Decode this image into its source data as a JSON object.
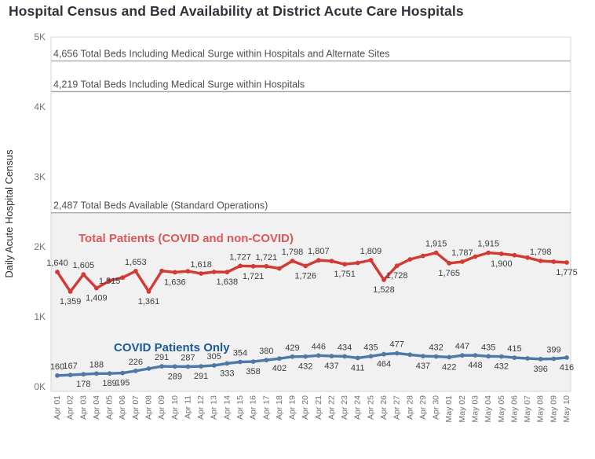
{
  "page": {
    "title": "Hospital Census and Bed Availability at District Acute Care Hospitals"
  },
  "chart_data": {
    "type": "line",
    "title": "Hospital Census and Bed Availability at District Acute Care Hospitals",
    "xlabel": "",
    "ylabel": "Daily Acute Hospital Census",
    "ylim": [
      0,
      5000
    ],
    "yticks": [
      "0K",
      "1K",
      "2K",
      "3K",
      "4K",
      "5K"
    ],
    "grid": "off",
    "legend_position": "inline-labels",
    "colors": {
      "red_line": "#d23a34",
      "red_label": "#e15759",
      "blue_line": "#4e79a7",
      "blue_label": "#1b5a9b",
      "band": "#f1f1f1",
      "ref_line": "#ababab",
      "ref_text": "#4f4f4f",
      "data_label": "#3c3c3c",
      "border": "#d4d4d4"
    },
    "x": [
      "Apr 01",
      "Apr 02",
      "Apr 03",
      "Apr 04",
      "Apr 05",
      "Apr 06",
      "Apr 07",
      "Apr 08",
      "Apr 09",
      "Apr 10",
      "Apr 11",
      "Apr 12",
      "Apr 13",
      "Apr 14",
      "Apr 15",
      "Apr 16",
      "Apr 17",
      "Apr 18",
      "Apr 19",
      "Apr 20",
      "Apr 21",
      "Apr 22",
      "Apr 23",
      "Apr 24",
      "Apr 25",
      "Apr 26",
      "Apr 27",
      "Apr 28",
      "Apr 29",
      "Apr 30",
      "May 01",
      "May 02",
      "May 03",
      "May 04",
      "May 05",
      "May 06",
      "May 07",
      "May 08",
      "May 09",
      "May 10"
    ],
    "reference_lines": [
      {
        "value": 4656,
        "label": "4,656 Total Beds Including Medical Surge within Hospitals and Alternate Sites",
        "shade_below": false
      },
      {
        "value": 4219,
        "label": "4,219 Total Beds Including Medical Surge within Hospitals",
        "shade_below": false
      },
      {
        "value": 2487,
        "label": "2,487 Total Beds Available (Standard Operations)",
        "shade_below": true
      }
    ],
    "series": [
      {
        "id": "total-patients",
        "name": "Total Patients (COVID and non-COVID)",
        "color": "#d23a34",
        "name_color": "#e15759",
        "values": [
          1640,
          1359,
          1605,
          1409,
          1515,
          1560,
          1653,
          1361,
          1655,
          1636,
          1650,
          1618,
          1640,
          1638,
          1727,
          1721,
          1721,
          1690,
          1798,
          1726,
          1807,
          1795,
          1751,
          1770,
          1809,
          1528,
          1728,
          1820,
          1870,
          1915,
          1765,
          1787,
          1860,
          1915,
          1900,
          1880,
          1845,
          1798,
          1786,
          1775
        ],
        "labels": [
          {
            "t": "1,640",
            "p": "a"
          },
          {
            "t": "1,359",
            "p": "b"
          },
          {
            "t": "1,605",
            "p": "a"
          },
          {
            "t": "1,409",
            "p": "b"
          },
          {
            "t": "1,515",
            "p": "m"
          },
          null,
          {
            "t": "1,653",
            "p": "a"
          },
          {
            "t": "1,361",
            "p": "b"
          },
          null,
          {
            "t": "1,636",
            "p": "b"
          },
          null,
          {
            "t": "1,618",
            "p": "a"
          },
          null,
          {
            "t": "1,638",
            "p": "b"
          },
          {
            "t": "1,727",
            "p": "a"
          },
          {
            "t": "1,721",
            "p": "b"
          },
          {
            "t": "1,721",
            "p": "a"
          },
          null,
          {
            "t": "1,798",
            "p": "a"
          },
          {
            "t": "1,726",
            "p": "b"
          },
          {
            "t": "1,807",
            "p": "a"
          },
          null,
          {
            "t": "1,751",
            "p": "b"
          },
          null,
          {
            "t": "1,809",
            "p": "a"
          },
          {
            "t": "1,528",
            "p": "b"
          },
          {
            "t": "1,728",
            "p": "b"
          },
          null,
          null,
          {
            "t": "1,915",
            "p": "a"
          },
          {
            "t": "1,765",
            "p": "b"
          },
          {
            "t": "1,787",
            "p": "a"
          },
          null,
          {
            "t": "1,915",
            "p": "a"
          },
          {
            "t": "1,900",
            "p": "b"
          },
          null,
          null,
          {
            "t": "1,798",
            "p": "a"
          },
          null,
          {
            "t": "1,775",
            "p": "b"
          }
        ]
      },
      {
        "id": "covid-only",
        "name": "COVID Patients Only",
        "color": "#4e79a7",
        "name_color": "#1b5a9b",
        "values": [
          160,
          167,
          178,
          188,
          189,
          195,
          226,
          258,
          291,
          289,
          287,
          291,
          305,
          333,
          354,
          358,
          380,
          402,
          429,
          432,
          446,
          437,
          434,
          411,
          435,
          464,
          477,
          457,
          437,
          432,
          422,
          447,
          448,
          435,
          432,
          415,
          405,
          396,
          399,
          416
        ],
        "labels": [
          {
            "t": "160",
            "p": "a"
          },
          {
            "t": "167",
            "p": "a"
          },
          {
            "t": "178",
            "p": "b"
          },
          {
            "t": "188",
            "p": "a"
          },
          {
            "t": "189",
            "p": "b"
          },
          {
            "t": "195",
            "p": "b"
          },
          {
            "t": "226",
            "p": "a"
          },
          null,
          {
            "t": "291",
            "p": "a"
          },
          {
            "t": "289",
            "p": "b"
          },
          {
            "t": "287",
            "p": "a"
          },
          {
            "t": "291",
            "p": "b"
          },
          {
            "t": "305",
            "p": "a"
          },
          {
            "t": "333",
            "p": "b"
          },
          {
            "t": "354",
            "p": "a"
          },
          {
            "t": "358",
            "p": "b"
          },
          {
            "t": "380",
            "p": "a"
          },
          {
            "t": "402",
            "p": "b"
          },
          {
            "t": "429",
            "p": "a"
          },
          {
            "t": "432",
            "p": "b"
          },
          {
            "t": "446",
            "p": "a"
          },
          {
            "t": "437",
            "p": "b"
          },
          {
            "t": "434",
            "p": "a"
          },
          {
            "t": "411",
            "p": "b"
          },
          {
            "t": "435",
            "p": "a"
          },
          {
            "t": "464",
            "p": "b"
          },
          {
            "t": "477",
            "p": "a"
          },
          null,
          {
            "t": "437",
            "p": "b"
          },
          {
            "t": "432",
            "p": "a"
          },
          {
            "t": "422",
            "p": "b"
          },
          {
            "t": "447",
            "p": "a"
          },
          {
            "t": "448",
            "p": "b"
          },
          {
            "t": "435",
            "p": "a"
          },
          {
            "t": "432",
            "p": "b"
          },
          {
            "t": "415",
            "p": "a"
          },
          null,
          {
            "t": "396",
            "p": "b"
          },
          {
            "t": "399",
            "p": "a"
          },
          {
            "t": "416",
            "p": "b"
          }
        ]
      }
    ]
  }
}
